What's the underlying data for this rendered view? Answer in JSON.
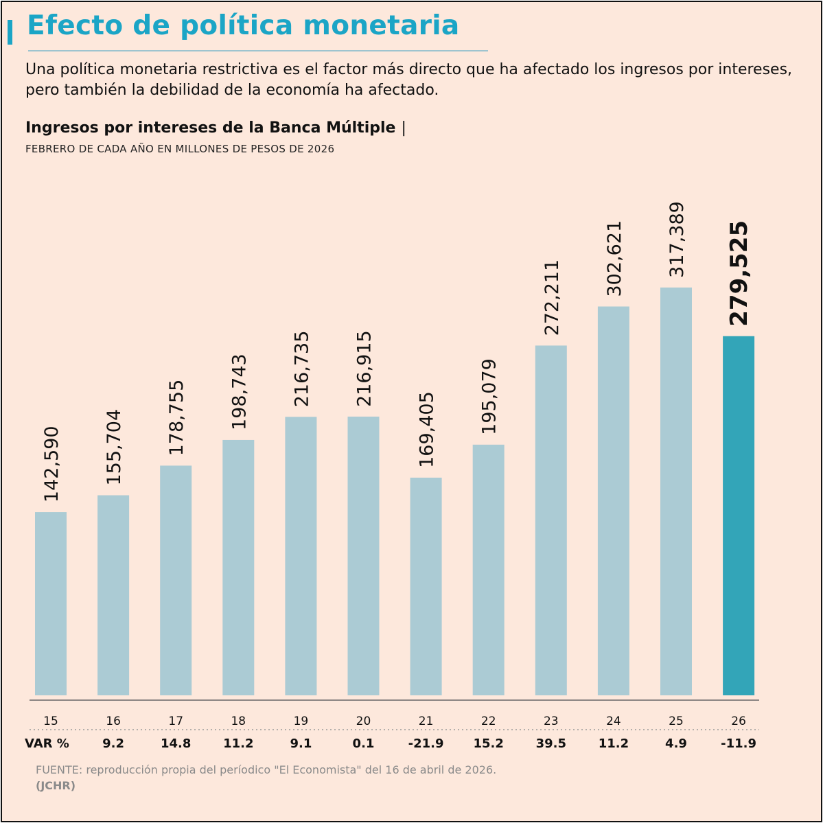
{
  "header": {
    "title": "Efecto de política monetaria",
    "lead": "Una política monetaria restrictiva es el factor más directo que ha afectado los ingresos por intereses, pero también la debilidad de la economía ha afectado."
  },
  "chart_data": {
    "type": "bar",
    "title": "Ingresos por intereses de la Banca Múltiple",
    "title_separator": "|",
    "subtitle": "FEBRERO DE CADA AÑO EN MILLONES DE PESOS DE 2026",
    "categories": [
      "15",
      "16",
      "17",
      "18",
      "19",
      "20",
      "21",
      "22",
      "23",
      "24",
      "25",
      "26"
    ],
    "values": [
      142590,
      155704,
      178755,
      198743,
      216735,
      216915,
      169405,
      195079,
      272211,
      302621,
      317389,
      279525
    ],
    "value_labels": [
      "142,590",
      "155,704",
      "178,755",
      "198,743",
      "216,735",
      "216,915",
      "169,405",
      "195,079",
      "272,211",
      "302,621",
      "317,389",
      "279,525"
    ],
    "highlight_index": 11,
    "ylim": [
      0,
      320000
    ],
    "grid": false,
    "colors": {
      "bar": "#abcbd4",
      "highlight": "#33a5b8",
      "axis": "#666666"
    },
    "var_header": "VAR %",
    "var_values": [
      "9.2",
      "14.8",
      "11.2",
      "9.1",
      "0.1",
      "-21.9",
      "15.2",
      "39.5",
      "11.2",
      "4.9",
      "-11.9"
    ]
  },
  "footer": {
    "source": "FUENTE: reproducción propia del períodico \"El Economista\" del 16 de abril de 2026.",
    "credit": "(JCHR)"
  }
}
